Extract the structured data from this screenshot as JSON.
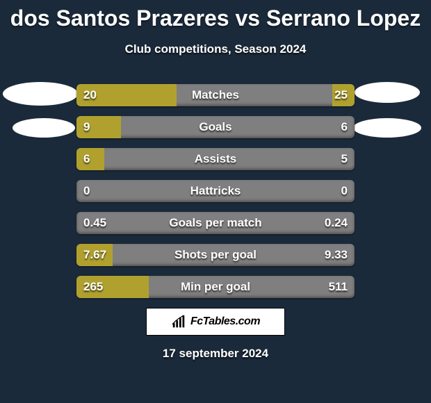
{
  "title": "dos Santos Prazeres vs Serrano Lopez",
  "subtitle": "Club competitions, Season 2024",
  "date": "17 september 2024",
  "logo_text": "FcTables.com",
  "colors": {
    "background": "#1b2a3a",
    "bar_track": "#7f7f7f",
    "bar_fill": "#b0a12e",
    "text": "#ffffff"
  },
  "bars": [
    {
      "label": "Matches",
      "left_display": "20",
      "right_display": "25",
      "left_pct": 36,
      "right_pct": 8
    },
    {
      "label": "Goals",
      "left_display": "9",
      "right_display": "6",
      "left_pct": 16,
      "right_pct": 0
    },
    {
      "label": "Assists",
      "left_display": "6",
      "right_display": "5",
      "left_pct": 10,
      "right_pct": 0
    },
    {
      "label": "Hattricks",
      "left_display": "0",
      "right_display": "0",
      "left_pct": 0,
      "right_pct": 0
    },
    {
      "label": "Goals per match",
      "left_display": "0.45",
      "right_display": "0.24",
      "left_pct": 0,
      "right_pct": 0
    },
    {
      "label": "Shots per goal",
      "left_display": "7.67",
      "right_display": "9.33",
      "left_pct": 13,
      "right_pct": 0
    },
    {
      "label": "Min per goal",
      "left_display": "265",
      "right_display": "511",
      "left_pct": 26,
      "right_pct": 0
    }
  ]
}
